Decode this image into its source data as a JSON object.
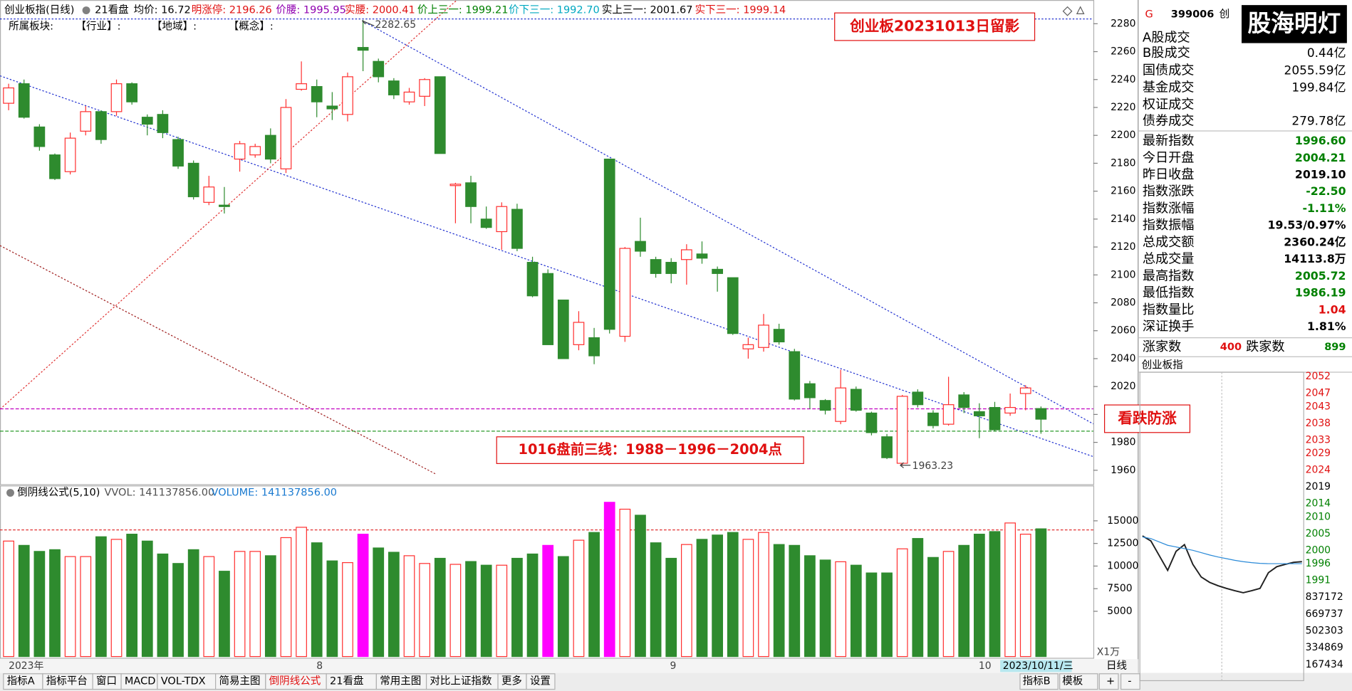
{
  "header": {
    "title": "创业板指(日线)",
    "indicator": "21看盘",
    "items": [
      {
        "text": "均价: 16.72",
        "color": "#000000"
      },
      {
        "text": "明涨停: 2196.26",
        "color": "#e01010"
      },
      {
        "text": "价腰: 1995.95",
        "color": "#9000b0"
      },
      {
        "text": "实腰: 2000.41",
        "color": "#e01010"
      },
      {
        "text": "价上三一: 1999.21",
        "color": "#008000"
      },
      {
        "text": "价下三一: 1992.70",
        "color": "#00a8c0"
      },
      {
        "text": "实上三一: 2001.67",
        "color": "#000000"
      },
      {
        "text": "实下三一: 1999.14",
        "color": "#e01010"
      }
    ]
  },
  "sector": [
    "所属板块:",
    "【行业】:",
    "【地域】:",
    "【概念】:"
  ],
  "kline": {
    "type": "candlestick",
    "up_color": "#ff3030",
    "down_color": "#2e8b2e",
    "ylim": [
      1950,
      2297
    ],
    "yticks": [
      1960,
      1980,
      2000,
      2020,
      2040,
      2060,
      2080,
      2100,
      2120,
      2140,
      2160,
      2180,
      2200,
      2220,
      2240,
      2260,
      2280
    ],
    "ref_lines": [
      {
        "value": 2004,
        "color": "#c000c0"
      },
      {
        "value": 1988,
        "color": "#2a9a2a"
      }
    ],
    "candles": [
      {
        "open": 2223,
        "high": 2237,
        "low": 2218,
        "close": 2234
      },
      {
        "open": 2237,
        "high": 2240,
        "low": 2212,
        "close": 2213
      },
      {
        "open": 2206,
        "high": 2208,
        "low": 2189,
        "close": 2192
      },
      {
        "open": 2186,
        "high": 2187,
        "low": 2168,
        "close": 2169
      },
      {
        "open": 2174,
        "high": 2202,
        "low": 2172,
        "close": 2198
      },
      {
        "open": 2203,
        "high": 2221,
        "low": 2200,
        "close": 2217
      },
      {
        "open": 2217,
        "high": 2218,
        "low": 2194,
        "close": 2197
      },
      {
        "open": 2217,
        "high": 2240,
        "low": 2214,
        "close": 2237
      },
      {
        "open": 2237,
        "high": 2238,
        "low": 2222,
        "close": 2224
      },
      {
        "open": 2213,
        "high": 2215,
        "low": 2200,
        "close": 2208
      },
      {
        "open": 2215,
        "high": 2218,
        "low": 2198,
        "close": 2202
      },
      {
        "open": 2197,
        "high": 2199,
        "low": 2176,
        "close": 2178
      },
      {
        "open": 2180,
        "high": 2182,
        "low": 2154,
        "close": 2156
      },
      {
        "open": 2152,
        "high": 2171,
        "low": 2150,
        "close": 2163
      },
      {
        "open": 2150,
        "high": 2163,
        "low": 2144,
        "close": 2149
      },
      {
        "open": 2183,
        "high": 2196,
        "low": 2174,
        "close": 2194
      },
      {
        "open": 2186,
        "high": 2194,
        "low": 2184,
        "close": 2192
      },
      {
        "open": 2200,
        "high": 2205,
        "low": 2180,
        "close": 2183
      },
      {
        "open": 2176,
        "high": 2226,
        "low": 2173,
        "close": 2220
      },
      {
        "open": 2233,
        "high": 2253,
        "low": 2232,
        "close": 2237
      },
      {
        "open": 2235,
        "high": 2240,
        "low": 2213,
        "close": 2224
      },
      {
        "open": 2221,
        "high": 2231,
        "low": 2211,
        "close": 2219
      },
      {
        "open": 2215,
        "high": 2245,
        "low": 2210,
        "close": 2242
      },
      {
        "open": 2263,
        "high": 2282.65,
        "low": 2246,
        "close": 2261
      },
      {
        "open": 2253,
        "high": 2255,
        "low": 2238,
        "close": 2242
      },
      {
        "open": 2239,
        "high": 2241,
        "low": 2226,
        "close": 2229
      },
      {
        "open": 2224,
        "high": 2234,
        "low": 2222,
        "close": 2231
      },
      {
        "open": 2228,
        "high": 2241,
        "low": 2221,
        "close": 2240
      },
      {
        "open": 2242,
        "high": 2242,
        "low": 2187,
        "close": 2187
      },
      {
        "open": 2164,
        "high": 2166,
        "low": 2137,
        "close": 2165
      },
      {
        "open": 2166,
        "high": 2171,
        "low": 2137,
        "close": 2149
      },
      {
        "open": 2140,
        "high": 2149,
        "low": 2133,
        "close": 2134
      },
      {
        "open": 2131,
        "high": 2152,
        "low": 2118,
        "close": 2149
      },
      {
        "open": 2147,
        "high": 2151,
        "low": 2117,
        "close": 2119
      },
      {
        "open": 2109,
        "high": 2113,
        "low": 2084,
        "close": 2085
      },
      {
        "open": 2101,
        "high": 2104,
        "low": 2050,
        "close": 2050
      },
      {
        "open": 2082,
        "high": 2082,
        "low": 2040,
        "close": 2040
      },
      {
        "open": 2050,
        "high": 2074,
        "low": 2046,
        "close": 2066
      },
      {
        "open": 2055,
        "high": 2062,
        "low": 2036,
        "close": 2042
      },
      {
        "open": 2183,
        "high": 2183,
        "low": 2058,
        "close": 2061
      },
      {
        "open": 2056,
        "high": 2120,
        "low": 2052,
        "close": 2119
      },
      {
        "open": 2124,
        "high": 2141,
        "low": 2113,
        "close": 2117
      },
      {
        "open": 2111,
        "high": 2113,
        "low": 2098,
        "close": 2101
      },
      {
        "open": 2109,
        "high": 2112,
        "low": 2094,
        "close": 2101
      },
      {
        "open": 2111,
        "high": 2122,
        "low": 2093,
        "close": 2118
      },
      {
        "open": 2115,
        "high": 2124,
        "low": 2108,
        "close": 2112
      },
      {
        "open": 2104,
        "high": 2106,
        "low": 2088,
        "close": 2101
      },
      {
        "open": 2098,
        "high": 2098,
        "low": 2057,
        "close": 2058
      },
      {
        "open": 2047,
        "high": 2055,
        "low": 2040,
        "close": 2050
      },
      {
        "open": 2048,
        "high": 2072,
        "low": 2045,
        "close": 2064
      },
      {
        "open": 2061,
        "high": 2065,
        "low": 2050,
        "close": 2052
      },
      {
        "open": 2045,
        "high": 2047,
        "low": 2010,
        "close": 2011
      },
      {
        "open": 2022,
        "high": 2024,
        "low": 2004,
        "close": 2012
      },
      {
        "open": 2010,
        "high": 2011,
        "low": 2000,
        "close": 2003
      },
      {
        "open": 1995,
        "high": 2032,
        "low": 1993,
        "close": 2019
      },
      {
        "open": 2018,
        "high": 2020,
        "low": 2002,
        "close": 2003
      },
      {
        "open": 2001,
        "high": 2002,
        "low": 1985,
        "close": 1987
      },
      {
        "open": 1984,
        "high": 1986,
        "low": 1968,
        "close": 1969
      },
      {
        "open": 1965,
        "high": 2014,
        "low": 1963.23,
        "close": 2013
      },
      {
        "open": 2016,
        "high": 2018,
        "low": 2005,
        "close": 2007
      },
      {
        "open": 2001,
        "high": 2003,
        "low": 1990,
        "close": 1992
      },
      {
        "open": 1993,
        "high": 2027,
        "low": 1992,
        "close": 2007
      },
      {
        "open": 2014,
        "high": 2016,
        "low": 2001,
        "close": 2005
      },
      {
        "open": 2002,
        "high": 2008,
        "low": 1983,
        "close": 1999
      },
      {
        "open": 2005,
        "high": 2009,
        "low": 1988,
        "close": 1989
      },
      {
        "open": 2001,
        "high": 2015,
        "low": 1999,
        "close": 2005
      },
      {
        "open": 2015,
        "high": 2021,
        "low": 2003,
        "close": 2019
      },
      {
        "open": 2004.21,
        "high": 2005.72,
        "low": 1986.19,
        "close": 1996.6
      }
    ]
  },
  "annotations": {
    "snapshot": "创业板20231013日留影",
    "levels": "1016盘前三线：1988－1996－2004点",
    "stance": "看跌防涨",
    "high": "2282.65",
    "low": "1963.23"
  },
  "volume": {
    "type": "bar",
    "title": "倒阴线公式(5,10)",
    "vvol": "VVOL: 141137856.00",
    "volume": "VOLUME: 141137856.00",
    "unit": "X1万",
    "ylim": [
      0,
      18760
    ],
    "yticks": [
      5000,
      7500,
      10000,
      12500,
      15000
    ],
    "highlight": [
      23,
      35,
      39
    ],
    "highlight_color": "#ff00ff",
    "values": [
      12762,
      12286,
      11619,
      11810,
      11048,
      11048,
      13238,
      12953,
      13524,
      12762,
      11333,
      10286,
      11810,
      11048,
      9429,
      11619,
      11619,
      11143,
      13143,
      14286,
      12571,
      10571,
      10381,
      13524,
      12000,
      11524,
      11143,
      10286,
      10857,
      10190,
      10500,
      10095,
      10095,
      10857,
      11333,
      12286,
      11048,
      12857,
      13714,
      17048,
      16286,
      15619,
      12571,
      10857,
      12381,
      12953,
      13429,
      13714,
      12953,
      13714,
      12381,
      12286,
      11143,
      10667,
      10476,
      10095,
      9238,
      9238,
      11905,
      13048,
      10952,
      11619,
      12286,
      13524,
      13810,
      14762,
      13524,
      14113.8
    ]
  },
  "x_axis": {
    "labels": [
      "2023年",
      "8",
      "9",
      "10"
    ],
    "cursor": "2023/10/11/三",
    "period": "日线"
  },
  "quote": {
    "marker": "G",
    "code": "399006",
    "name": "创",
    "watermark": "股海明灯",
    "turnover": [
      {
        "label": "A股成交"
      },
      {
        "label": "B股成交",
        "value": "0.44亿"
      },
      {
        "label": "国债成交",
        "value": "2055.59亿"
      },
      {
        "label": "基金成交",
        "value": "199.84亿"
      },
      {
        "label": "权证成交"
      },
      {
        "label": "债券成交",
        "value": "279.78亿"
      }
    ],
    "stats": [
      {
        "label": "最新指数",
        "value": "1996.60",
        "color": "#008000"
      },
      {
        "label": "今日开盘",
        "value": "2004.21",
        "color": "#008000"
      },
      {
        "label": "昨日收盘",
        "value": "2019.10",
        "color": "#000000"
      },
      {
        "label": "指数涨跌",
        "value": "-22.50",
        "color": "#008000"
      },
      {
        "label": "指数涨幅",
        "value": "-1.11%",
        "color": "#008000"
      },
      {
        "label": "指数振幅",
        "value": "19.53/0.97%",
        "color": "#000000"
      },
      {
        "label": "总成交额",
        "value": "2360.24亿",
        "color": "#000000"
      },
      {
        "label": "总成交量",
        "value": "14113.8万",
        "color": "#000000"
      },
      {
        "label": "最高指数",
        "value": "2005.72",
        "color": "#008000"
      },
      {
        "label": "最低指数",
        "value": "1986.19",
        "color": "#008000"
      },
      {
        "label": "指数量比",
        "value": "1.04",
        "color": "#e01010"
      },
      {
        "label": "深证换手",
        "value": "1.81%",
        "color": "#000000"
      }
    ],
    "breadth": {
      "up_label": "涨家数",
      "up": "400",
      "down_label": "跌家数",
      "down": "899"
    }
  },
  "intraday": {
    "type": "line",
    "title": "创业板指",
    "ylim": [
      1986,
      2053.8
    ],
    "yticks": [
      2052,
      2047,
      2043,
      2038,
      2033,
      2029,
      2024,
      2019,
      2014,
      2010,
      2005,
      2000,
      1996,
      1991
    ],
    "vlim": [
      0,
      837172
    ],
    "vticks": [
      837172,
      669737,
      502303,
      334869,
      167434
    ],
    "series": [
      {
        "color": "#202020",
        "values": [
          2004.3,
          2002.8,
          1998.4,
          1994.0,
          1999.7,
          2001.7,
          1995.8,
          1992.0,
          1990.4,
          1989.4,
          1988.6,
          1987.9,
          1987.3,
          1987.9,
          1988.6,
          1993.3,
          1995.1,
          1995.8,
          1996.4,
          1996.6
        ]
      },
      {
        "color": "#2a8ad8",
        "values": [
          2004,
          2003.5,
          2002.5,
          2001.5,
          2001,
          2000.5,
          2000,
          1999.3,
          1998.6,
          1998,
          1997.5,
          1997,
          1996.6,
          1996.3,
          1996.1,
          1996,
          1996,
          1996,
          1996,
          1996
        ]
      }
    ]
  },
  "toolbar": {
    "left": [
      "指标A",
      "指标平台",
      "窗口",
      "MACD",
      "VOL-TDX",
      "简易主图",
      "倒阴线公式",
      "21看盘",
      "常用主图",
      "对比上证指数",
      "更多",
      "设置"
    ],
    "active": "倒阴线公式",
    "right": [
      "指标B",
      "模板",
      "+",
      "-"
    ]
  }
}
